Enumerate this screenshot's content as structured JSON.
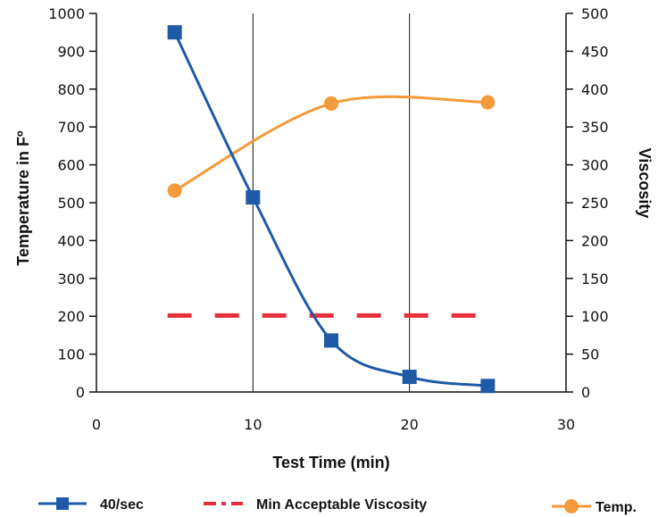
{
  "chart_data": {
    "type": "line",
    "title": "",
    "xlabel": "Test Time (min)",
    "ylabel_left": "Temperature in Fº",
    "ylabel_right": "Viscosity",
    "xlim": [
      0,
      30
    ],
    "ylim_left": [
      0,
      1000
    ],
    "ylim_right": [
      0,
      500
    ],
    "xticks": [
      "0",
      "10",
      "20",
      "30"
    ],
    "yticks_left": [
      "0",
      "100",
      "200",
      "300",
      "400",
      "500",
      "600",
      "700",
      "800",
      "900",
      "1000"
    ],
    "yticks_right": [
      "0",
      "50",
      "100",
      "150",
      "200",
      "250",
      "300",
      "350",
      "400",
      "450",
      "500"
    ],
    "grid": "vertical",
    "legend_position": "bottom",
    "series": [
      {
        "name": "40/sec",
        "axis": "right",
        "color": "#1f5aa6",
        "marker": "square",
        "style": "solid-smooth",
        "x": [
          5,
          10,
          15,
          20,
          25
        ],
        "y": [
          475,
          257,
          68,
          20,
          8
        ]
      },
      {
        "name": "Min Acceptable Viscosity",
        "axis": "right",
        "color": "#e8303c",
        "marker": "none",
        "style": "dashed",
        "x": [
          5,
          25
        ],
        "y": [
          101,
          101
        ]
      },
      {
        "name": "Temp.",
        "axis": "left",
        "color": "#f39a3a",
        "marker": "circle",
        "style": "solid-smooth",
        "x": [
          5,
          15,
          25
        ],
        "y": [
          532,
          762,
          765
        ]
      }
    ]
  }
}
